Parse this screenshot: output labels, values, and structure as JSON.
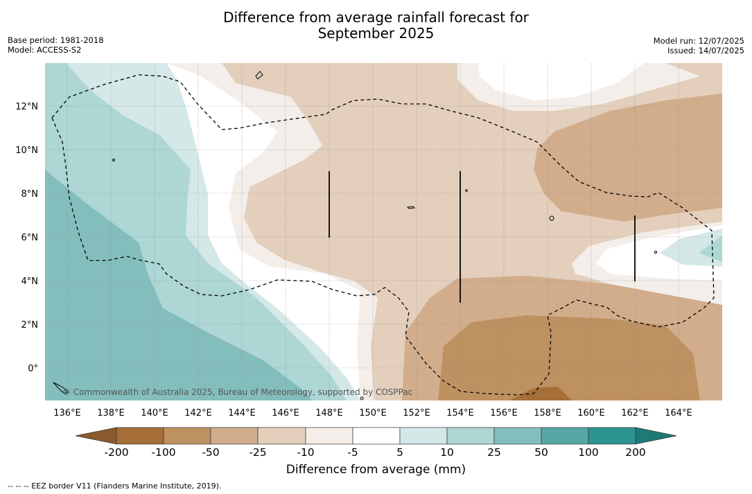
{
  "title_line1": "Difference from average rainfall forecast for",
  "title_line2": "September 2025",
  "meta_left": {
    "base_period": "Base period: 1981-2018",
    "model": "Model: ACCESS-S2"
  },
  "meta_right": {
    "model_run": "Model run: 12/07/2025",
    "issued": "Issued: 14/07/2025"
  },
  "map": {
    "lat_labels": [
      "12°N",
      "10°N",
      "8°N",
      "6°N",
      "4°N",
      "2°N",
      "0°"
    ],
    "lon_labels": [
      "136°E",
      "138°E",
      "140°E",
      "142°E",
      "144°E",
      "146°E",
      "148°E",
      "150°E",
      "152°E",
      "154°E",
      "156°E",
      "158°E",
      "160°E",
      "162°E",
      "164°E"
    ],
    "copyright": "© Commonwealth of Australia 2025, Bureau of Meteorology, supported by COSPPac",
    "colors": {
      "dry200": "#a66f38",
      "dry100": "#be9161",
      "dry50": "#d1ad8c",
      "dry25": "#e3cfbc",
      "dry10": "#f3eee9",
      "neutral": "#ffffff",
      "wet5": "#d4e8e7",
      "wet10": "#add6d5",
      "wet25": "#83bebd",
      "wet50": "#58a6a5",
      "wet100": "#2c9592",
      "wet200": "#1f7a76"
    }
  },
  "colorbar": {
    "tick_labels": [
      "-200",
      "-100",
      "-50",
      "-25",
      "-10",
      "-5",
      "5",
      "10",
      "25",
      "50",
      "100",
      "200"
    ],
    "title": "Difference from average (mm)"
  },
  "footnote": "--  --  -- EEZ border V11 (Flanders Marine Institute, 2019)."
}
